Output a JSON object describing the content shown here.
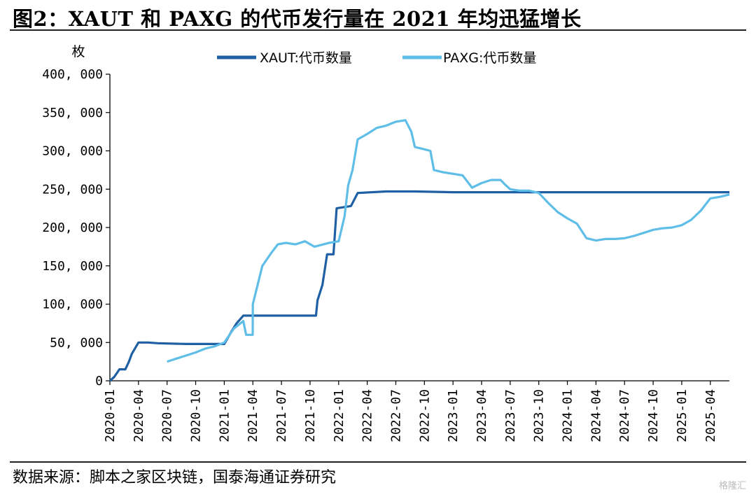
{
  "title": "图2：XAUT 和 PAXG 的代币发行量在 2021 年均迅猛增长",
  "source": "数据来源：脚本之家区块链，国泰海通证券研究",
  "watermark": "格隆汇",
  "colors": {
    "xaut": "#1F5FA3",
    "paxg": "#5FBEE8",
    "axis": "#000000"
  },
  "chart_data": {
    "type": "line",
    "ylabel": "枚",
    "ylim": [
      0,
      400000
    ],
    "y_ticks": [
      0,
      50000,
      100000,
      150000,
      200000,
      250000,
      300000,
      350000,
      400000
    ],
    "y_tick_labels": [
      "0",
      "50, 000",
      "100, 000",
      "150, 000",
      "200, 000",
      "250, 000",
      "300, 000",
      "350, 000",
      "400, 000"
    ],
    "x_ticks": [
      "2020-01",
      "2020-04",
      "2020-07",
      "2020-10",
      "2021-01",
      "2021-04",
      "2021-07",
      "2021-10",
      "2022-01",
      "2022-04",
      "2022-07",
      "2022-10",
      "2023-01",
      "2023-04",
      "2023-07",
      "2023-10",
      "2024-01",
      "2024-04",
      "2024-07",
      "2024-10",
      "2025-01",
      "2025-04"
    ],
    "xlim": [
      "2020-01",
      "2025-06"
    ],
    "legend_position": "top",
    "grid": false,
    "series": [
      {
        "name": "XAUT:代币数量",
        "color": "#1F5FA3",
        "points": [
          [
            "2020-01-01",
            0
          ],
          [
            "2020-01-15",
            5000
          ],
          [
            "2020-02-01",
            15000
          ],
          [
            "2020-02-20",
            15000
          ],
          [
            "2020-03-01",
            25000
          ],
          [
            "2020-03-10",
            35000
          ],
          [
            "2020-03-20",
            42000
          ],
          [
            "2020-04-01",
            50000
          ],
          [
            "2020-05-01",
            50000
          ],
          [
            "2020-06-01",
            49000
          ],
          [
            "2020-09-01",
            48000
          ],
          [
            "2020-12-01",
            48000
          ],
          [
            "2021-01-01",
            48000
          ],
          [
            "2021-01-25",
            65000
          ],
          [
            "2021-02-10",
            75000
          ],
          [
            "2021-03-01",
            85000
          ],
          [
            "2021-06-01",
            85000
          ],
          [
            "2021-09-01",
            85000
          ],
          [
            "2021-10-20",
            85000
          ],
          [
            "2021-10-25",
            105000
          ],
          [
            "2021-11-10",
            125000
          ],
          [
            "2021-11-25",
            165000
          ],
          [
            "2021-12-15",
            165000
          ],
          [
            "2021-12-25",
            225000
          ],
          [
            "2022-02-10",
            228000
          ],
          [
            "2022-03-01",
            245000
          ],
          [
            "2022-06-01",
            247000
          ],
          [
            "2022-09-01",
            247000
          ],
          [
            "2023-01-01",
            246000
          ],
          [
            "2023-06-01",
            246000
          ],
          [
            "2024-01-01",
            246000
          ],
          [
            "2024-06-01",
            246000
          ],
          [
            "2025-01-01",
            246000
          ],
          [
            "2025-06-01",
            246000
          ]
        ]
      },
      {
        "name": "PAXG:代币数量",
        "color": "#5FBEE8",
        "points": [
          [
            "2020-07-01",
            25000
          ],
          [
            "2020-08-01",
            29000
          ],
          [
            "2020-09-01",
            33000
          ],
          [
            "2020-10-01",
            37000
          ],
          [
            "2020-11-01",
            42000
          ],
          [
            "2020-12-01",
            45000
          ],
          [
            "2021-01-01",
            50000
          ],
          [
            "2021-02-01",
            68000
          ],
          [
            "2021-03-01",
            78000
          ],
          [
            "2021-03-10",
            60000
          ],
          [
            "2021-03-31",
            60000
          ],
          [
            "2021-04-01",
            100000
          ],
          [
            "2021-05-01",
            150000
          ],
          [
            "2021-06-01",
            168000
          ],
          [
            "2021-06-20",
            178000
          ],
          [
            "2021-07-15",
            180000
          ],
          [
            "2021-08-15",
            178000
          ],
          [
            "2021-09-15",
            182000
          ],
          [
            "2021-10-15",
            175000
          ],
          [
            "2021-12-01",
            180000
          ],
          [
            "2022-01-01",
            182000
          ],
          [
            "2022-01-20",
            215000
          ],
          [
            "2022-02-01",
            255000
          ],
          [
            "2022-02-15",
            275000
          ],
          [
            "2022-03-01",
            315000
          ],
          [
            "2022-04-01",
            322000
          ],
          [
            "2022-05-01",
            330000
          ],
          [
            "2022-06-01",
            333000
          ],
          [
            "2022-07-01",
            338000
          ],
          [
            "2022-08-01",
            340000
          ],
          [
            "2022-08-20",
            325000
          ],
          [
            "2022-09-01",
            305000
          ],
          [
            "2022-10-01",
            302000
          ],
          [
            "2022-10-20",
            300000
          ],
          [
            "2022-11-01",
            275000
          ],
          [
            "2022-12-01",
            272000
          ],
          [
            "2023-01-01",
            270000
          ],
          [
            "2023-02-01",
            268000
          ],
          [
            "2023-03-01",
            252000
          ],
          [
            "2023-04-01",
            258000
          ],
          [
            "2023-05-01",
            262000
          ],
          [
            "2023-06-01",
            262000
          ],
          [
            "2023-06-15",
            256000
          ],
          [
            "2023-07-01",
            250000
          ],
          [
            "2023-08-01",
            248000
          ],
          [
            "2023-09-01",
            248000
          ],
          [
            "2023-10-01",
            245000
          ],
          [
            "2023-11-01",
            232000
          ],
          [
            "2023-12-01",
            220000
          ],
          [
            "2024-01-01",
            212000
          ],
          [
            "2024-02-01",
            205000
          ],
          [
            "2024-03-01",
            186000
          ],
          [
            "2024-04-01",
            183000
          ],
          [
            "2024-05-01",
            185000
          ],
          [
            "2024-06-01",
            185000
          ],
          [
            "2024-07-01",
            186000
          ],
          [
            "2024-08-01",
            189000
          ],
          [
            "2024-09-01",
            193000
          ],
          [
            "2024-10-01",
            197000
          ],
          [
            "2024-11-01",
            199000
          ],
          [
            "2024-12-01",
            200000
          ],
          [
            "2025-01-01",
            203000
          ],
          [
            "2025-02-01",
            210000
          ],
          [
            "2025-03-01",
            222000
          ],
          [
            "2025-04-01",
            238000
          ],
          [
            "2025-05-01",
            240000
          ],
          [
            "2025-06-01",
            243000
          ]
        ]
      }
    ]
  }
}
